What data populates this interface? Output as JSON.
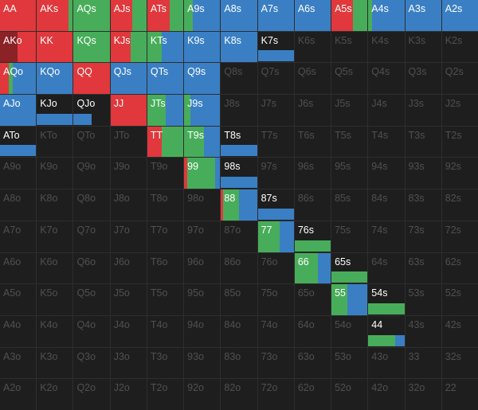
{
  "colors": {
    "raise": "#3a7fc4",
    "call": "#48ad5a",
    "allin": "#e0383c",
    "allin_dark": "#8a2226",
    "inactive_label": "#505050",
    "active_label": "#ffffff"
  },
  "ranks": [
    "A",
    "K",
    "Q",
    "J",
    "T",
    "9",
    "8",
    "7",
    "6",
    "5",
    "4",
    "3",
    "2"
  ],
  "cells": [
    {
      "label": "AA",
      "active": true,
      "style": "fill",
      "mix": [
        {
          "c": "allin",
          "p": 100
        }
      ]
    },
    {
      "label": "AKs",
      "active": true,
      "style": "fill",
      "mix": [
        {
          "c": "allin",
          "p": 88
        },
        {
          "c": "call",
          "p": 12
        }
      ]
    },
    {
      "label": "AQs",
      "active": true,
      "style": "fill",
      "mix": [
        {
          "c": "call",
          "p": 100
        }
      ]
    },
    {
      "label": "AJs",
      "active": true,
      "style": "fill",
      "mix": [
        {
          "c": "allin",
          "p": 60
        },
        {
          "c": "call",
          "p": 40
        }
      ]
    },
    {
      "label": "ATs",
      "active": true,
      "style": "fill",
      "mix": [
        {
          "c": "allin",
          "p": 62
        },
        {
          "c": "call",
          "p": 38
        }
      ]
    },
    {
      "label": "A9s",
      "active": true,
      "style": "fill",
      "mix": [
        {
          "c": "call",
          "p": 25
        },
        {
          "c": "raise",
          "p": 75
        }
      ]
    },
    {
      "label": "A8s",
      "active": true,
      "style": "fill",
      "mix": [
        {
          "c": "raise",
          "p": 100
        }
      ]
    },
    {
      "label": "A7s",
      "active": true,
      "style": "fill",
      "mix": [
        {
          "c": "raise",
          "p": 100
        }
      ]
    },
    {
      "label": "A6s",
      "active": true,
      "style": "fill",
      "mix": [
        {
          "c": "raise",
          "p": 100
        }
      ]
    },
    {
      "label": "A5s",
      "active": true,
      "style": "fill",
      "mix": [
        {
          "c": "allin",
          "p": 60
        },
        {
          "c": "call",
          "p": 40
        }
      ]
    },
    {
      "label": "A4s",
      "active": true,
      "style": "fill",
      "mix": [
        {
          "c": "call",
          "p": 10
        },
        {
          "c": "raise",
          "p": 90
        }
      ]
    },
    {
      "label": "A3s",
      "active": true,
      "style": "fill",
      "mix": [
        {
          "c": "raise",
          "p": 100
        }
      ]
    },
    {
      "label": "A2s",
      "active": true,
      "style": "fill",
      "mix": [
        {
          "c": "raise",
          "p": 100
        }
      ]
    },
    {
      "label": "AKo",
      "active": true,
      "style": "fill",
      "mix": [
        {
          "c": "allin_dark",
          "p": 48
        },
        {
          "c": "allin",
          "p": 52
        }
      ]
    },
    {
      "label": "KK",
      "active": true,
      "style": "fill",
      "mix": [
        {
          "c": "allin",
          "p": 100
        }
      ]
    },
    {
      "label": "KQs",
      "active": true,
      "style": "fill",
      "mix": [
        {
          "c": "call",
          "p": 100
        }
      ]
    },
    {
      "label": "KJs",
      "active": true,
      "style": "fill",
      "mix": [
        {
          "c": "allin",
          "p": 55
        },
        {
          "c": "call",
          "p": 45
        }
      ]
    },
    {
      "label": "KTs",
      "active": true,
      "style": "fill",
      "mix": [
        {
          "c": "call",
          "p": 40
        },
        {
          "c": "raise",
          "p": 60
        }
      ]
    },
    {
      "label": "K9s",
      "active": true,
      "style": "fill",
      "mix": [
        {
          "c": "raise",
          "p": 100
        }
      ]
    },
    {
      "label": "K8s",
      "active": true,
      "style": "fill",
      "mix": [
        {
          "c": "raise",
          "p": 100
        }
      ]
    },
    {
      "label": "K7s",
      "active": true,
      "style": "bar",
      "mix": [
        {
          "c": "raise",
          "p": 100
        }
      ]
    },
    {
      "label": "K6s",
      "active": false
    },
    {
      "label": "K5s",
      "active": false
    },
    {
      "label": "K4s",
      "active": false
    },
    {
      "label": "K3s",
      "active": false
    },
    {
      "label": "K2s",
      "active": false
    },
    {
      "label": "AQo",
      "active": true,
      "style": "fill",
      "mix": [
        {
          "c": "allin",
          "p": 25
        },
        {
          "c": "call",
          "p": 10
        },
        {
          "c": "raise",
          "p": 65
        }
      ]
    },
    {
      "label": "KQo",
      "active": true,
      "style": "fill",
      "mix": [
        {
          "c": "raise",
          "p": 100
        }
      ]
    },
    {
      "label": "QQ",
      "active": true,
      "style": "fill",
      "mix": [
        {
          "c": "allin",
          "p": 100
        }
      ]
    },
    {
      "label": "QJs",
      "active": true,
      "style": "fill",
      "mix": [
        {
          "c": "raise",
          "p": 100
        }
      ]
    },
    {
      "label": "QTs",
      "active": true,
      "style": "fill",
      "mix": [
        {
          "c": "raise",
          "p": 100
        }
      ]
    },
    {
      "label": "Q9s",
      "active": true,
      "style": "fill",
      "mix": [
        {
          "c": "raise",
          "p": 100
        }
      ]
    },
    {
      "label": "Q8s",
      "active": false
    },
    {
      "label": "Q7s",
      "active": false
    },
    {
      "label": "Q6s",
      "active": false
    },
    {
      "label": "Q5s",
      "active": false
    },
    {
      "label": "Q4s",
      "active": false
    },
    {
      "label": "Q3s",
      "active": false
    },
    {
      "label": "Q2s",
      "active": false
    },
    {
      "label": "AJo",
      "active": true,
      "style": "fill",
      "mix": [
        {
          "c": "raise",
          "p": 100
        }
      ]
    },
    {
      "label": "KJo",
      "active": true,
      "style": "bar",
      "mix": [
        {
          "c": "raise",
          "p": 100
        }
      ]
    },
    {
      "label": "QJo",
      "active": true,
      "style": "bar",
      "mix": [
        {
          "c": "raise",
          "p": 50
        }
      ]
    },
    {
      "label": "JJ",
      "active": true,
      "style": "fill",
      "mix": [
        {
          "c": "allin",
          "p": 100
        }
      ]
    },
    {
      "label": "JTs",
      "active": true,
      "style": "fill",
      "mix": [
        {
          "c": "call",
          "p": 50
        },
        {
          "c": "raise",
          "p": 50
        }
      ]
    },
    {
      "label": "J9s",
      "active": true,
      "style": "fill",
      "mix": [
        {
          "c": "call",
          "p": 18
        },
        {
          "c": "raise",
          "p": 82
        }
      ]
    },
    {
      "label": "J8s",
      "active": false
    },
    {
      "label": "J7s",
      "active": false
    },
    {
      "label": "J6s",
      "active": false
    },
    {
      "label": "J5s",
      "active": false
    },
    {
      "label": "J4s",
      "active": false
    },
    {
      "label": "J3s",
      "active": false
    },
    {
      "label": "J2s",
      "active": false
    },
    {
      "label": "ATo",
      "active": true,
      "style": "bar",
      "mix": [
        {
          "c": "raise",
          "p": 100
        }
      ]
    },
    {
      "label": "KTo",
      "active": false
    },
    {
      "label": "QTo",
      "active": false
    },
    {
      "label": "JTo",
      "active": false
    },
    {
      "label": "TT",
      "active": true,
      "style": "fill",
      "mix": [
        {
          "c": "allin",
          "p": 40
        },
        {
          "c": "call",
          "p": 60
        }
      ]
    },
    {
      "label": "T9s",
      "active": true,
      "style": "fill",
      "mix": [
        {
          "c": "call",
          "p": 55
        },
        {
          "c": "raise",
          "p": 45
        }
      ]
    },
    {
      "label": "T8s",
      "active": true,
      "style": "bar",
      "mix": [
        {
          "c": "raise",
          "p": 100
        }
      ]
    },
    {
      "label": "T7s",
      "active": false
    },
    {
      "label": "T6s",
      "active": false
    },
    {
      "label": "T5s",
      "active": false
    },
    {
      "label": "T4s",
      "active": false
    },
    {
      "label": "T3s",
      "active": false
    },
    {
      "label": "T2s",
      "active": false
    },
    {
      "label": "A9o",
      "active": false
    },
    {
      "label": "K9o",
      "active": false
    },
    {
      "label": "Q9o",
      "active": false
    },
    {
      "label": "J9o",
      "active": false
    },
    {
      "label": "T9o",
      "active": false
    },
    {
      "label": "99",
      "active": true,
      "style": "fill",
      "mix": [
        {
          "c": "allin",
          "p": 8
        },
        {
          "c": "call",
          "p": 77
        },
        {
          "c": "raise",
          "p": 15
        }
      ]
    },
    {
      "label": "98s",
      "active": true,
      "style": "bar",
      "mix": [
        {
          "c": "raise",
          "p": 100
        }
      ]
    },
    {
      "label": "97s",
      "active": false
    },
    {
      "label": "96s",
      "active": false
    },
    {
      "label": "95s",
      "active": false
    },
    {
      "label": "94s",
      "active": false
    },
    {
      "label": "93s",
      "active": false
    },
    {
      "label": "92s",
      "active": false
    },
    {
      "label": "A8o",
      "active": false
    },
    {
      "label": "K8o",
      "active": false
    },
    {
      "label": "Q8o",
      "active": false
    },
    {
      "label": "J8o",
      "active": false
    },
    {
      "label": "T8o",
      "active": false
    },
    {
      "label": "98o",
      "active": false
    },
    {
      "label": "88",
      "active": true,
      "style": "fill",
      "mix": [
        {
          "c": "allin",
          "p": 5
        },
        {
          "c": "call",
          "p": 45
        },
        {
          "c": "raise",
          "p": 50
        }
      ]
    },
    {
      "label": "87s",
      "active": true,
      "style": "bar",
      "mix": [
        {
          "c": "raise",
          "p": 100
        }
      ]
    },
    {
      "label": "86s",
      "active": false
    },
    {
      "label": "85s",
      "active": false
    },
    {
      "label": "84s",
      "active": false
    },
    {
      "label": "83s",
      "active": false
    },
    {
      "label": "82s",
      "active": false
    },
    {
      "label": "A7o",
      "active": false
    },
    {
      "label": "K7o",
      "active": false
    },
    {
      "label": "Q7o",
      "active": false
    },
    {
      "label": "J7o",
      "active": false
    },
    {
      "label": "T7o",
      "active": false
    },
    {
      "label": "97o",
      "active": false
    },
    {
      "label": "87o",
      "active": false
    },
    {
      "label": "77",
      "active": true,
      "style": "fill",
      "mix": [
        {
          "c": "call",
          "p": 60
        },
        {
          "c": "raise",
          "p": 40
        }
      ]
    },
    {
      "label": "76s",
      "active": true,
      "style": "bar",
      "mix": [
        {
          "c": "call",
          "p": 100
        }
      ]
    },
    {
      "label": "75s",
      "active": false
    },
    {
      "label": "74s",
      "active": false
    },
    {
      "label": "73s",
      "active": false
    },
    {
      "label": "72s",
      "active": false
    },
    {
      "label": "A6o",
      "active": false
    },
    {
      "label": "K6o",
      "active": false
    },
    {
      "label": "Q6o",
      "active": false
    },
    {
      "label": "J6o",
      "active": false
    },
    {
      "label": "T6o",
      "active": false
    },
    {
      "label": "96o",
      "active": false
    },
    {
      "label": "86o",
      "active": false
    },
    {
      "label": "76o",
      "active": false
    },
    {
      "label": "66",
      "active": true,
      "style": "fill",
      "mix": [
        {
          "c": "call",
          "p": 65
        },
        {
          "c": "raise",
          "p": 35
        }
      ]
    },
    {
      "label": "65s",
      "active": true,
      "style": "bar",
      "mix": [
        {
          "c": "call",
          "p": 100
        }
      ]
    },
    {
      "label": "64s",
      "active": false
    },
    {
      "label": "63s",
      "active": false
    },
    {
      "label": "62s",
      "active": false
    },
    {
      "label": "A5o",
      "active": false
    },
    {
      "label": "K5o",
      "active": false
    },
    {
      "label": "Q5o",
      "active": false
    },
    {
      "label": "J5o",
      "active": false
    },
    {
      "label": "T5o",
      "active": false
    },
    {
      "label": "95o",
      "active": false
    },
    {
      "label": "85o",
      "active": false
    },
    {
      "label": "75o",
      "active": false
    },
    {
      "label": "65o",
      "active": false
    },
    {
      "label": "55",
      "active": true,
      "style": "fill",
      "mix": [
        {
          "c": "call",
          "p": 45
        },
        {
          "c": "raise",
          "p": 55
        }
      ]
    },
    {
      "label": "54s",
      "active": true,
      "style": "bar",
      "mix": [
        {
          "c": "call",
          "p": 100
        }
      ]
    },
    {
      "label": "53s",
      "active": false
    },
    {
      "label": "52s",
      "active": false
    },
    {
      "label": "A4o",
      "active": false
    },
    {
      "label": "K4o",
      "active": false
    },
    {
      "label": "Q4o",
      "active": false
    },
    {
      "label": "J4o",
      "active": false
    },
    {
      "label": "T4o",
      "active": false
    },
    {
      "label": "94o",
      "active": false
    },
    {
      "label": "84o",
      "active": false
    },
    {
      "label": "74o",
      "active": false
    },
    {
      "label": "64o",
      "active": false
    },
    {
      "label": "54o",
      "active": false
    },
    {
      "label": "44",
      "active": true,
      "style": "bar",
      "mix": [
        {
          "c": "call",
          "p": 75
        },
        {
          "c": "raise",
          "p": 25
        }
      ]
    },
    {
      "label": "43s",
      "active": false
    },
    {
      "label": "42s",
      "active": false
    },
    {
      "label": "A3o",
      "active": false
    },
    {
      "label": "K3o",
      "active": false
    },
    {
      "label": "Q3o",
      "active": false
    },
    {
      "label": "J3o",
      "active": false
    },
    {
      "label": "T3o",
      "active": false
    },
    {
      "label": "93o",
      "active": false
    },
    {
      "label": "83o",
      "active": false
    },
    {
      "label": "73o",
      "active": false
    },
    {
      "label": "63o",
      "active": false
    },
    {
      "label": "53o",
      "active": false
    },
    {
      "label": "43o",
      "active": false
    },
    {
      "label": "33",
      "active": false
    },
    {
      "label": "32s",
      "active": false
    },
    {
      "label": "A2o",
      "active": false
    },
    {
      "label": "K2o",
      "active": false
    },
    {
      "label": "Q2o",
      "active": false
    },
    {
      "label": "J2o",
      "active": false
    },
    {
      "label": "T2o",
      "active": false
    },
    {
      "label": "92o",
      "active": false
    },
    {
      "label": "82o",
      "active": false
    },
    {
      "label": "72o",
      "active": false
    },
    {
      "label": "62o",
      "active": false
    },
    {
      "label": "52o",
      "active": false
    },
    {
      "label": "42o",
      "active": false
    },
    {
      "label": "32o",
      "active": false
    },
    {
      "label": "22",
      "active": false
    }
  ]
}
